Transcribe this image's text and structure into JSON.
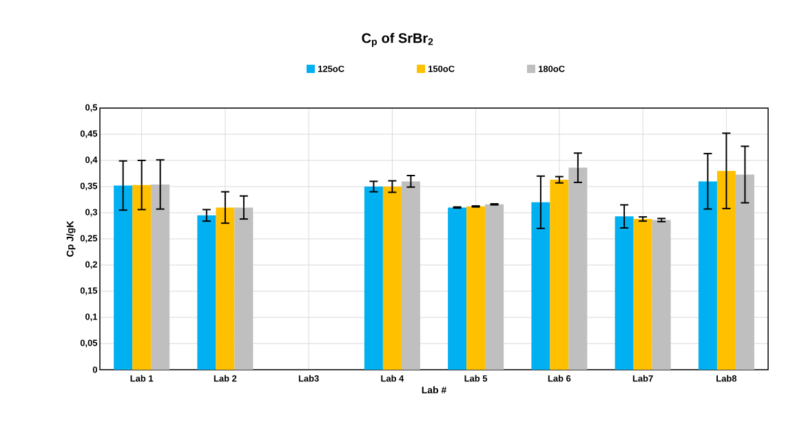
{
  "chart_data": {
    "type": "bar",
    "title": "C$_{p}$ of SrBr$_{2}$",
    "xlabel": "Lab #",
    "ylabel": "Cp J/gK",
    "categories": [
      "Lab 1",
      "Lab 2",
      "Lab3",
      "Lab 4",
      "Lab 5",
      "Lab 6",
      "Lab7",
      "Lab8"
    ],
    "series": [
      {
        "name": "125oC",
        "color": "#00b0f0",
        "values": [
          0.352,
          0.295,
          null,
          0.35,
          0.31,
          0.32,
          0.293,
          0.36
        ],
        "errors": [
          0.047,
          0.011,
          null,
          0.01,
          0.001,
          0.05,
          0.022,
          0.053
        ]
      },
      {
        "name": "150oC",
        "color": "#ffc000",
        "values": [
          0.353,
          0.31,
          null,
          0.35,
          0.312,
          0.363,
          0.288,
          0.38
        ],
        "errors": [
          0.047,
          0.03,
          null,
          0.011,
          0.001,
          0.006,
          0.004,
          0.072
        ]
      },
      {
        "name": "180oC",
        "color": "#bfbfbf",
        "values": [
          0.354,
          0.31,
          null,
          0.36,
          0.316,
          0.386,
          0.286,
          0.373
        ],
        "errors": [
          0.047,
          0.022,
          null,
          0.011,
          0.001,
          0.028,
          0.003,
          0.054
        ]
      }
    ],
    "ylim": [
      0,
      0.5
    ],
    "yticks": [
      0,
      {
        "value": 0.05,
        "label": "0,05"
      },
      {
        "value": 0.1,
        "label": "0,1"
      },
      {
        "value": 0.15,
        "label": "0,15"
      },
      {
        "value": 0.2,
        "label": "0,2"
      },
      {
        "value": 0.25,
        "label": "0,25"
      },
      {
        "value": 0.3,
        "label": "0,3"
      },
      {
        "value": 0.35,
        "label": "0,35"
      },
      {
        "value": 0.4,
        "label": "0,4"
      },
      {
        "value": 0.45,
        "label": "0,45"
      },
      {
        "value": 0.5,
        "label": "0,5"
      }
    ],
    "grid": true,
    "legend": "top"
  }
}
